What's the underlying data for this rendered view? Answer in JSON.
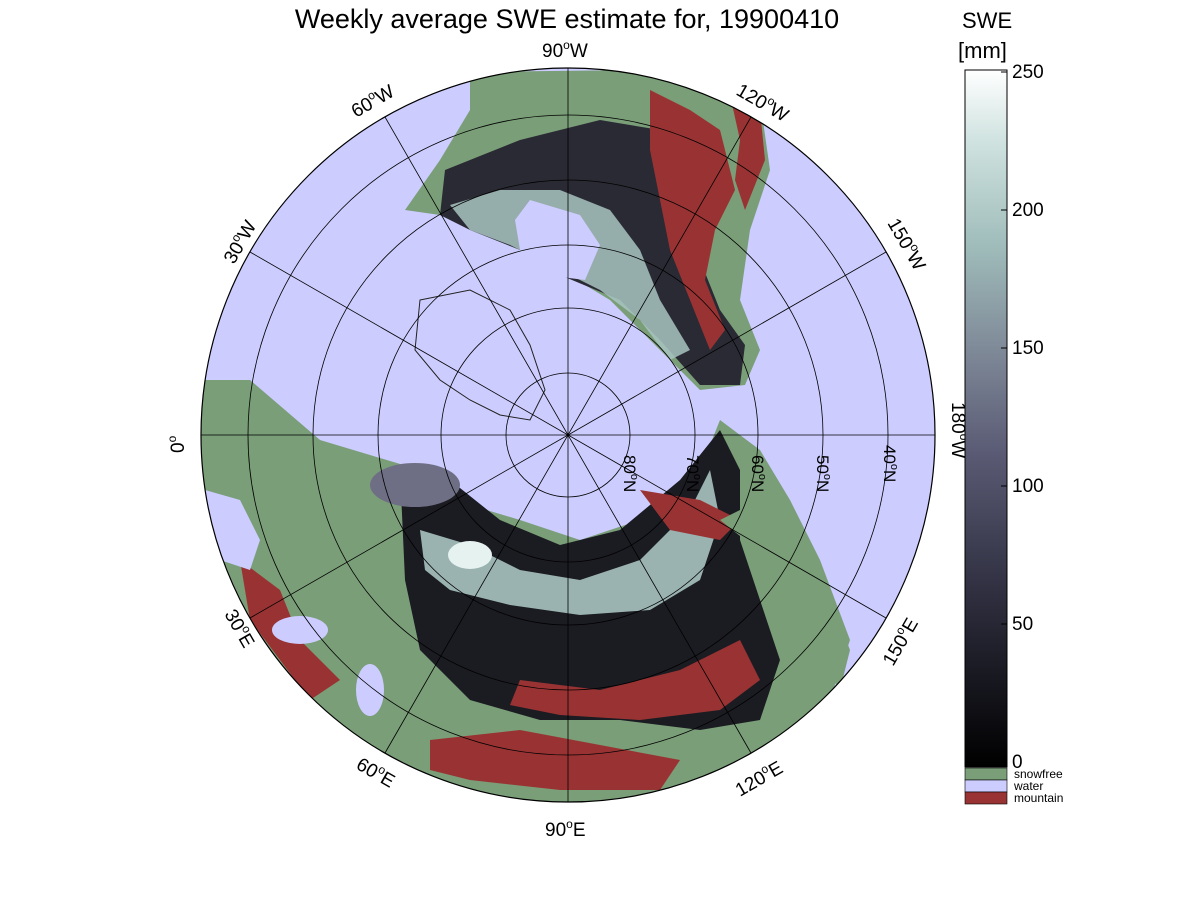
{
  "title": "Weekly average SWE estimate for, 19900410",
  "lon_labels": {
    "w90": "90",
    "w60": "60",
    "w120": "120",
    "w30": "30",
    "w150": "150",
    "zero": "0",
    "w180": "180",
    "e30": "30",
    "e150": "150",
    "e60": "60",
    "e120": "120",
    "e90": "90"
  },
  "lon_suffix": {
    "deg": "o",
    "west": "W",
    "east": "E"
  },
  "lat_labels": [
    "80",
    "70",
    "60",
    "50",
    "40"
  ],
  "lat_suffix": {
    "deg": "o",
    "north": "N"
  },
  "colorbar": {
    "title": "SWE",
    "unit": "[mm]",
    "ticks": [
      "0",
      "50",
      "100",
      "150",
      "200",
      "250"
    ],
    "min": 0,
    "max": 250
  },
  "legend": [
    {
      "label": "snowfree",
      "color": "#7a9e78"
    },
    {
      "label": "water",
      "color": "#ccccff"
    },
    {
      "label": "mountain",
      "color": "#993333"
    }
  ],
  "colors": {
    "water": "#ccccff",
    "snowfree": "#7a9e78",
    "mountain": "#993333"
  }
}
